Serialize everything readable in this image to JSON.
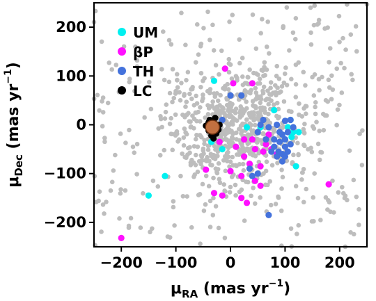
{
  "chart_data": {
    "type": "scatter",
    "title": "",
    "xlabel": {
      "main": "μ",
      "sub": "RA",
      "unit": " (mas yr",
      "sup": "−1",
      "close": ")"
    },
    "ylabel": {
      "main": "μ",
      "sub": "Dec",
      "unit": " (mas yr",
      "sup": "−1",
      "close": ")"
    },
    "xlim": [
      -250,
      250
    ],
    "ylim": [
      -250,
      250
    ],
    "xticks": [
      -200,
      -100,
      0,
      100,
      200
    ],
    "yticks": [
      -200,
      -100,
      0,
      100,
      200
    ],
    "xtick_labels": [
      "−200",
      "−100",
      "0",
      "100",
      "200"
    ],
    "ytick_labels": [
      "−200",
      "−100",
      "0",
      "100",
      "200"
    ],
    "grid": false,
    "legend_position": "top-left",
    "background_field": {
      "color": "#bdbdbd",
      "seed": 7,
      "count": 900,
      "center": [
        15,
        -10
      ],
      "spread": [
        60,
        60
      ]
    },
    "series": [
      {
        "name": "UM",
        "color": "#00f0f0",
        "points": [
          [
            -30,
            90
          ],
          [
            80,
            30
          ],
          [
            110,
            10
          ],
          [
            115,
            -15
          ],
          [
            125,
            -15
          ],
          [
            105,
            -5
          ],
          [
            30,
            -5
          ],
          [
            -35,
            -35
          ],
          [
            -15,
            -50
          ],
          [
            -120,
            -105
          ],
          [
            -150,
            -145
          ],
          [
            120,
            -85
          ],
          [
            55,
            -5
          ],
          [
            100,
            -30
          ],
          [
            112,
            -25
          ]
        ]
      },
      {
        "name": "βP",
        "color": "#ff10ff",
        "points": [
          [
            -10,
            115
          ],
          [
            5,
            85
          ],
          [
            40,
            85
          ],
          [
            -20,
            -35
          ],
          [
            25,
            -30
          ],
          [
            40,
            -30
          ],
          [
            65,
            -40
          ],
          [
            10,
            -45
          ],
          [
            45,
            -50
          ],
          [
            60,
            -55
          ],
          [
            85,
            -60
          ],
          [
            25,
            -65
          ],
          [
            35,
            -80
          ],
          [
            55,
            -85
          ],
          [
            -45,
            -92
          ],
          [
            0,
            -95
          ],
          [
            20,
            -105
          ],
          [
            45,
            -115
          ],
          [
            55,
            -125
          ],
          [
            -30,
            -140
          ],
          [
            -15,
            -145
          ],
          [
            20,
            -150
          ],
          [
            30,
            -160
          ],
          [
            180,
            -122
          ],
          [
            -200,
            -232
          ],
          [
            75,
            -50
          ],
          [
            70,
            -20
          ]
        ]
      },
      {
        "name": "TH",
        "color": "#4472dc",
        "points": [
          [
            0,
            60
          ],
          [
            20,
            60
          ],
          [
            60,
            10
          ],
          [
            55,
            0
          ],
          [
            70,
            -5
          ],
          [
            85,
            0
          ],
          [
            90,
            -15
          ],
          [
            95,
            -20
          ],
          [
            105,
            -15
          ],
          [
            80,
            -30
          ],
          [
            90,
            -35
          ],
          [
            100,
            -45
          ],
          [
            110,
            -40
          ],
          [
            80,
            -45
          ],
          [
            88,
            -55
          ],
          [
            95,
            -60
          ],
          [
            100,
            -65
          ],
          [
            105,
            -55
          ],
          [
            85,
            -65
          ],
          [
            75,
            -55
          ],
          [
            95,
            -75
          ],
          [
            100,
            -30
          ],
          [
            110,
            10
          ],
          [
            100,
            8
          ],
          [
            115,
            -5
          ],
          [
            50,
            -15
          ],
          [
            65,
            -30
          ],
          [
            50,
            -100
          ],
          [
            40,
            -105
          ],
          [
            35,
            -90
          ],
          [
            70,
            -185
          ],
          [
            -15,
            10
          ]
        ]
      },
      {
        "name": "LC",
        "color": "#000000",
        "points": [
          [
            -38,
            10
          ],
          [
            -28,
            14
          ],
          [
            -45,
            -2
          ],
          [
            -20,
            0
          ],
          [
            -40,
            -12
          ],
          [
            -22,
            -10
          ],
          [
            -35,
            -22
          ],
          [
            -26,
            -18
          ],
          [
            -40,
            5
          ],
          [
            -31,
            -28
          ]
        ]
      }
    ],
    "annotation_marker": {
      "x": -33,
      "y": -5,
      "fill": "#c27040",
      "edge": "#6b3010"
    }
  }
}
